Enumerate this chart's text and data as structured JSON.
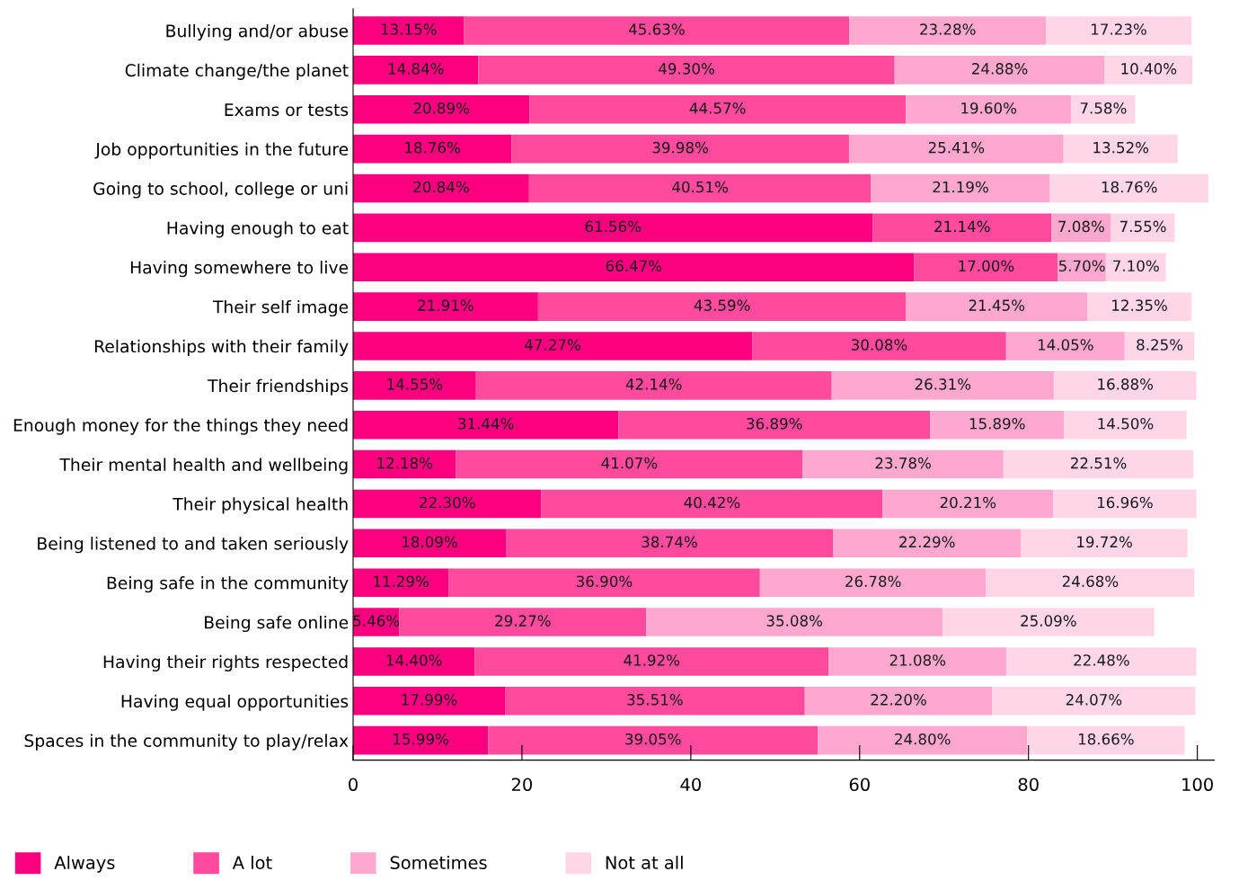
{
  "chart_data": {
    "type": "bar",
    "orientation": "horizontal",
    "stacked": true,
    "grid": false,
    "legend": "bottom left",
    "categories": [
      "Bullying and/or abuse",
      "Climate change/the planet",
      "Exams or tests",
      "Job opportunities in the future",
      "Going to school, college or uni",
      "Having enough to eat",
      "Having somewhere to live",
      "Their self image",
      "Relationships with their family",
      "Their friendships",
      "Enough money for the things they need",
      "Their mental health and wellbeing",
      "Their physical health",
      "Being listened to and taken seriously",
      "Being safe in the community",
      "Being safe online",
      "Having their rights respected",
      "Having equal opportunities",
      "Spaces in the community to play/relax"
    ],
    "series": [
      {
        "name": "Always",
        "color": "#fc0080",
        "values": [
          13.15,
          14.84,
          20.89,
          18.76,
          20.84,
          61.56,
          66.47,
          21.91,
          47.27,
          14.55,
          31.44,
          12.18,
          22.3,
          18.09,
          11.29,
          5.46,
          14.4,
          17.99,
          15.99
        ],
        "value_labels": [
          "13.15%",
          "14.84%",
          "20.89%",
          "18.76%",
          "20.84%",
          "61.56%",
          "66.47%",
          "21.91%",
          "47.27%",
          "14.55%",
          "31.44%",
          "12.18%",
          "22.30%",
          "18.09%",
          "11.29%",
          "5.46%",
          "14.40%",
          "17.99%",
          "15.99%"
        ]
      },
      {
        "name": "A lot",
        "color": "#ff4a9e",
        "values": [
          45.63,
          49.3,
          44.57,
          39.98,
          40.51,
          21.14,
          17.0,
          43.59,
          30.08,
          42.14,
          36.89,
          41.07,
          40.42,
          38.74,
          36.9,
          29.27,
          41.92,
          35.51,
          39.05
        ],
        "value_labels": [
          "45.63%",
          "49.30%",
          "44.57%",
          "39.98%",
          "40.51%",
          "21.14%",
          "17.00%",
          "43.59%",
          "30.08%",
          "42.14%",
          "36.89%",
          "41.07%",
          "40.42%",
          "38.74%",
          "36.90%",
          "29.27%",
          "41.92%",
          "35.51%",
          "39.05%"
        ]
      },
      {
        "name": "Sometimes",
        "color": "#ffa8cf",
        "values": [
          23.28,
          24.88,
          19.6,
          25.41,
          21.19,
          7.08,
          5.7,
          21.45,
          14.05,
          26.31,
          15.89,
          23.78,
          20.21,
          22.29,
          26.78,
          35.08,
          21.08,
          22.2,
          24.8
        ],
        "value_labels": [
          "23.28%",
          "24.88%",
          "19.60%",
          "25.41%",
          "21.19%",
          "7.08%",
          "5.70%",
          "21.45%",
          "14.05%",
          "26.31%",
          "15.89%",
          "23.78%",
          "20.21%",
          "22.29%",
          "26.78%",
          "35.08%",
          "21.08%",
          "22.20%",
          "24.80%"
        ]
      },
      {
        "name": "Not at all",
        "color": "#ffd6e8",
        "values": [
          17.23,
          10.4,
          7.58,
          13.52,
          18.76,
          7.55,
          7.1,
          12.35,
          8.25,
          16.88,
          14.5,
          22.51,
          16.96,
          19.72,
          24.68,
          25.09,
          22.48,
          24.07,
          18.66
        ],
        "value_labels": [
          "17.23%",
          "10.40%",
          "7.58%",
          "13.52%",
          "18.76%",
          "7.55%",
          "7.10%",
          "12.35%",
          "8.25%",
          "16.88%",
          "14.50%",
          "22.51%",
          "16.96%",
          "19.72%",
          "24.68%",
          "25.09%",
          "22.48%",
          "24.07%",
          "18.66%"
        ]
      }
    ],
    "xlim": [
      0,
      102
    ],
    "xticks": [
      0,
      20,
      40,
      60,
      80,
      100
    ]
  }
}
